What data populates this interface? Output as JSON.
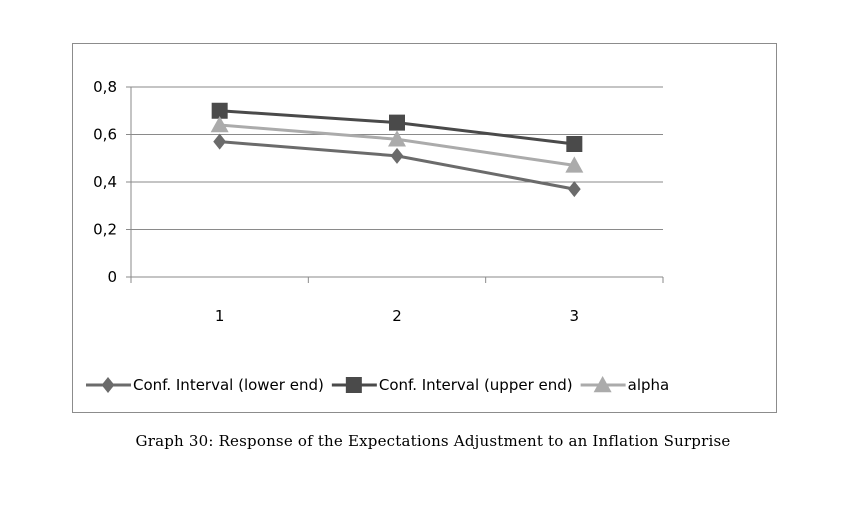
{
  "chart_data": {
    "type": "line",
    "title": "",
    "xlabel": "",
    "ylabel": "",
    "categories": [
      "1",
      "2",
      "3"
    ],
    "y_ticks": [
      "0",
      "0,2",
      "0,4",
      "0,6",
      "0,8"
    ],
    "ylim": [
      0,
      0.8
    ],
    "grid": true,
    "legend_position": "bottom",
    "series": [
      {
        "name": "Conf. Interval (lower end)",
        "values": [
          0.57,
          0.51,
          0.37
        ],
        "color": "#6b6b6b",
        "marker": "diamond"
      },
      {
        "name": "Conf. Interval (upper end)",
        "values": [
          0.7,
          0.65,
          0.56
        ],
        "color": "#4a4a4a",
        "marker": "square"
      },
      {
        "name": "alpha",
        "values": [
          0.64,
          0.58,
          0.47
        ],
        "color": "#ababab",
        "marker": "triangle"
      }
    ]
  },
  "caption": "Graph 30: Response of the Expectations Adjustment to an Inflation Surprise"
}
